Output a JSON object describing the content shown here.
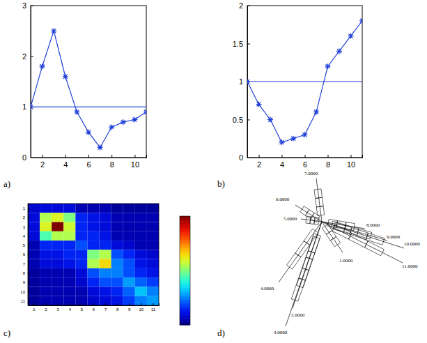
{
  "chart_data": [
    {
      "type": "line",
      "title": "a)",
      "x": [
        1,
        2,
        3,
        4,
        5,
        6,
        7,
        8,
        9,
        10,
        11
      ],
      "series": [
        {
          "color": "#1f3fd8",
          "marker": "asterisk",
          "line_style": "solid",
          "values": [
            1,
            1.8,
            2.5,
            1.6,
            0.9,
            0.5,
            0.2,
            0.6,
            0.7,
            0.75,
            0.9
          ]
        },
        {
          "color": "#1f3fd8",
          "marker": "none",
          "line_style": "solid",
          "values": [
            1,
            1,
            1,
            1,
            1,
            1,
            1,
            1,
            1,
            1,
            1
          ]
        }
      ],
      "xlim": [
        1,
        11
      ],
      "xticks": [
        2,
        4,
        6,
        8,
        10
      ],
      "ylim": [
        0,
        3
      ],
      "yticks": [
        0,
        1,
        2,
        3
      ],
      "grid": false
    },
    {
      "type": "line",
      "title": "b)",
      "x": [
        1,
        2,
        3,
        4,
        5,
        6,
        7,
        8,
        9,
        10,
        11
      ],
      "series": [
        {
          "color": "#1f3fd8",
          "marker": "asterisk",
          "line_style": "solid",
          "values": [
            1,
            0.7,
            0.5,
            0.2,
            0.25,
            0.3,
            0.6,
            1.2,
            1.4,
            1.6,
            1.8
          ]
        },
        {
          "color": "#1f3fd8",
          "marker": "none",
          "line_style": "solid",
          "values": [
            1,
            1,
            1,
            1,
            1,
            1,
            1,
            1,
            1,
            1,
            1
          ]
        }
      ],
      "xlim": [
        1,
        11
      ],
      "xticks": [
        2,
        4,
        6,
        8,
        10
      ],
      "ylim": [
        0,
        2
      ],
      "yticks": [
        0,
        0.5,
        1,
        1.5,
        2
      ],
      "grid": false
    },
    {
      "type": "heatmap",
      "title": "c)",
      "x": [
        1,
        2,
        3,
        4,
        5,
        6,
        7,
        8,
        9,
        10,
        11
      ],
      "y": [
        1,
        2,
        3,
        4,
        5,
        6,
        7,
        8,
        9,
        10,
        11
      ],
      "xlim": [
        0.5,
        11.5
      ],
      "xticks": [
        1,
        2,
        3,
        4,
        5,
        6,
        7,
        8,
        9,
        10,
        11
      ],
      "ylim": [
        11.5,
        0.5
      ],
      "yticks": [
        1,
        2,
        3,
        4,
        5,
        6,
        7,
        8,
        9,
        10,
        11
      ],
      "cells": [
        [
          0.08,
          0.1,
          0.1,
          0.1,
          0.05,
          0.05,
          0.05,
          0.03,
          0.03,
          0.03,
          0.03
        ],
        [
          0.1,
          0.55,
          0.6,
          0.5,
          0.15,
          0.12,
          0.1,
          0.05,
          0.05,
          0.05,
          0.05
        ],
        [
          0.1,
          0.6,
          1.0,
          0.58,
          0.15,
          0.12,
          0.1,
          0.05,
          0.05,
          0.05,
          0.05
        ],
        [
          0.1,
          0.45,
          0.55,
          0.55,
          0.15,
          0.15,
          0.12,
          0.05,
          0.05,
          0.05,
          0.05
        ],
        [
          0.05,
          0.15,
          0.15,
          0.15,
          0.2,
          0.15,
          0.15,
          0.1,
          0.08,
          0.05,
          0.05
        ],
        [
          0.05,
          0.12,
          0.12,
          0.15,
          0.15,
          0.5,
          0.55,
          0.2,
          0.15,
          0.1,
          0.08
        ],
        [
          0.05,
          0.1,
          0.1,
          0.12,
          0.15,
          0.55,
          0.65,
          0.25,
          0.2,
          0.12,
          0.1
        ],
        [
          0.03,
          0.05,
          0.05,
          0.05,
          0.1,
          0.2,
          0.25,
          0.25,
          0.2,
          0.15,
          0.12
        ],
        [
          0.03,
          0.05,
          0.05,
          0.05,
          0.08,
          0.15,
          0.2,
          0.2,
          0.28,
          0.22,
          0.18
        ],
        [
          0.03,
          0.05,
          0.05,
          0.05,
          0.05,
          0.1,
          0.12,
          0.15,
          0.22,
          0.32,
          0.25
        ],
        [
          0.03,
          0.05,
          0.05,
          0.05,
          0.05,
          0.08,
          0.1,
          0.12,
          0.18,
          0.25,
          0.28
        ]
      ],
      "color_range": [
        0,
        1
      ]
    }
  ],
  "diagram": {
    "panel_label": "d)",
    "nodes": [
      {
        "label": "1.0000"
      },
      {
        "label": "2.0000"
      },
      {
        "label": "3.0000"
      },
      {
        "label": "4.0000"
      },
      {
        "label": "5.0000"
      },
      {
        "label": "6.0000"
      },
      {
        "label": "7.0000"
      },
      {
        "label": "8.0000"
      },
      {
        "label": "9.0000"
      },
      {
        "label": "10.0000"
      },
      {
        "label": "11.0000"
      }
    ]
  }
}
